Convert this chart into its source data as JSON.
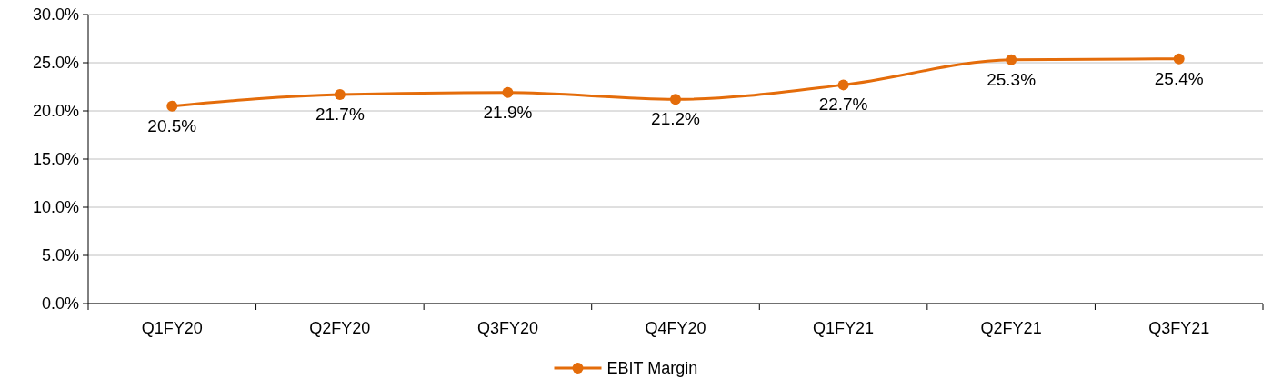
{
  "chart_data": {
    "type": "line",
    "categories": [
      "Q1FY20",
      "Q2FY20",
      "Q3FY20",
      "Q4FY20",
      "Q1FY21",
      "Q2FY21",
      "Q3FY21"
    ],
    "series": [
      {
        "name": "EBIT Margin",
        "color": "#e46c0a",
        "values": [
          20.5,
          21.7,
          21.9,
          21.2,
          22.7,
          25.3,
          25.4
        ],
        "value_labels": [
          "20.5%",
          "21.7%",
          "21.9%",
          "21.2%",
          "22.7%",
          "25.3%",
          "25.4%"
        ]
      }
    ],
    "ylim": [
      0,
      30
    ],
    "yticks": [
      {
        "value": 0,
        "label": "0.0%"
      },
      {
        "value": 5,
        "label": "5.0%"
      },
      {
        "value": 10,
        "label": "10.0%"
      },
      {
        "value": 15,
        "label": "15.0%"
      },
      {
        "value": 20,
        "label": "20.0%"
      },
      {
        "value": 25,
        "label": "25.0%"
      },
      {
        "value": 30,
        "label": "30.0%"
      }
    ],
    "grid": "y",
    "legend": "bottom",
    "marker": "circle",
    "line_style": "solid"
  }
}
